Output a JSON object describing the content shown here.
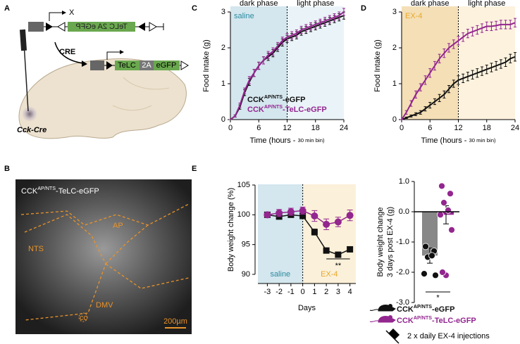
{
  "panels": [
    "A",
    "B",
    "C",
    "D",
    "E"
  ],
  "diagram": {
    "blocked_label": "X",
    "flipped_construct": "TeLC 2A eGFP",
    "recombinase": "CRE",
    "construct": [
      "TeLC",
      "2A",
      "eGFP"
    ],
    "mouse_line": "Cck-Cre"
  },
  "micrograph": {
    "title": [
      "CCK",
      "AP/NTS",
      "-TeLC-eGFP"
    ],
    "regions": [
      "AP",
      "NTS",
      "DMV",
      "cc"
    ],
    "scale_bar": "200µm"
  },
  "chart_data": [
    {
      "type": "line",
      "ylabel": "Food Intake (g)",
      "xlabel": [
        "Time (hours - ",
        "30 min bin)"
      ],
      "x": [
        0,
        1,
        2,
        3,
        4,
        5,
        6,
        7,
        8,
        9,
        10,
        11,
        12,
        13,
        14,
        15,
        16,
        17,
        18,
        19,
        20,
        21,
        22,
        23,
        24
      ],
      "xlim": [
        0,
        24
      ],
      "ylim": [
        0,
        3
      ],
      "xticks": [
        0,
        6,
        12,
        18,
        24
      ],
      "yticks": [
        0,
        1,
        2,
        3
      ],
      "regions": [
        {
          "label": "dark phase",
          "start": 0,
          "end": 12,
          "color": "#d4e6ee"
        },
        {
          "label": "light phase",
          "start": 12,
          "end": 24,
          "color": "#eaf3f8"
        }
      ],
      "divider": 12,
      "annotation": {
        "text": "saline",
        "color": "#2a8ca0"
      },
      "series": [
        {
          "name": [
            "CCK",
            "AP/NTS",
            "-eGFP"
          ],
          "color": "#111111",
          "values": [
            0,
            0.1,
            0.35,
            0.75,
            1.05,
            1.3,
            1.5,
            1.65,
            1.75,
            1.85,
            2.0,
            2.15,
            2.25,
            2.3,
            2.35,
            2.45,
            2.5,
            2.55,
            2.6,
            2.65,
            2.7,
            2.75,
            2.8,
            2.85,
            2.9
          ],
          "errors": [
            0,
            0.03,
            0.06,
            0.08,
            0.1,
            0.1,
            0.1,
            0.1,
            0.1,
            0.1,
            0.1,
            0.1,
            0.1,
            0.1,
            0.1,
            0.1,
            0.1,
            0.1,
            0.1,
            0.1,
            0.1,
            0.1,
            0.1,
            0.1,
            0.1
          ]
        },
        {
          "name": [
            "CCK",
            "AP/NTS",
            "-TeLC-eGFP"
          ],
          "color": "#93268f",
          "values": [
            0,
            0.1,
            0.4,
            0.8,
            1.1,
            1.3,
            1.5,
            1.65,
            1.8,
            1.9,
            2.05,
            2.2,
            2.3,
            2.35,
            2.4,
            2.5,
            2.55,
            2.6,
            2.65,
            2.7,
            2.75,
            2.8,
            2.85,
            2.9,
            3.0
          ],
          "errors": [
            0,
            0.03,
            0.06,
            0.08,
            0.1,
            0.1,
            0.1,
            0.1,
            0.1,
            0.1,
            0.1,
            0.1,
            0.1,
            0.1,
            0.1,
            0.1,
            0.1,
            0.1,
            0.1,
            0.1,
            0.1,
            0.1,
            0.1,
            0.1,
            0.1
          ]
        }
      ]
    },
    {
      "type": "line",
      "ylabel": "Food Intake (g)",
      "xlabel": [
        "Time (hours - ",
        "30 min bin)"
      ],
      "x": [
        0,
        1,
        2,
        3,
        4,
        5,
        6,
        7,
        8,
        9,
        10,
        11,
        12,
        13,
        14,
        15,
        16,
        17,
        18,
        19,
        20,
        21,
        22,
        23,
        24
      ],
      "xlim": [
        0,
        24
      ],
      "ylim": [
        0,
        3
      ],
      "xticks": [
        0,
        6,
        12,
        18,
        24
      ],
      "yticks": [
        0,
        1,
        2,
        3
      ],
      "regions": [
        {
          "label": "dark phase",
          "start": 0,
          "end": 12,
          "color": "#f4dfb6"
        },
        {
          "label": "light phase",
          "start": 12,
          "end": 24,
          "color": "#fcf2de"
        }
      ],
      "divider": 12,
      "annotation": {
        "text": "EX-4",
        "color": "#e8a82a"
      },
      "series": [
        {
          "color": "#111111",
          "values": [
            0,
            0.05,
            0.1,
            0.15,
            0.2,
            0.3,
            0.4,
            0.5,
            0.6,
            0.7,
            0.85,
            1.0,
            1.1,
            1.15,
            1.2,
            1.25,
            1.3,
            1.35,
            1.4,
            1.45,
            1.5,
            1.55,
            1.6,
            1.7,
            1.75
          ],
          "errors": [
            0,
            0.02,
            0.03,
            0.04,
            0.05,
            0.06,
            0.08,
            0.08,
            0.1,
            0.1,
            0.1,
            0.1,
            0.12,
            0.12,
            0.12,
            0.12,
            0.12,
            0.12,
            0.12,
            0.12,
            0.12,
            0.12,
            0.12,
            0.12,
            0.12
          ]
        },
        {
          "color": "#93268f",
          "values": [
            0,
            0.2,
            0.45,
            0.7,
            0.9,
            1.1,
            1.3,
            1.5,
            1.7,
            1.85,
            2.0,
            2.1,
            2.2,
            2.3,
            2.4,
            2.45,
            2.5,
            2.55,
            2.6,
            2.6,
            2.62,
            2.65,
            2.65,
            2.65,
            2.7
          ],
          "errors": [
            0,
            0.05,
            0.08,
            0.1,
            0.1,
            0.12,
            0.12,
            0.12,
            0.12,
            0.12,
            0.12,
            0.12,
            0.12,
            0.12,
            0.12,
            0.12,
            0.12,
            0.12,
            0.12,
            0.12,
            0.12,
            0.12,
            0.12,
            0.12,
            0.12
          ]
        }
      ]
    },
    {
      "type": "line",
      "ylabel": "Body weight change (%)",
      "xlabel": "Days",
      "x": [
        -3,
        -2,
        -1,
        0,
        1,
        2,
        3,
        4
      ],
      "xlim": [
        -3.8,
        4.5
      ],
      "ylim": [
        90,
        105
      ],
      "xticks": [
        -3,
        -2,
        -1,
        0,
        1,
        2,
        3,
        4
      ],
      "yticks": [
        90,
        95,
        100,
        105
      ],
      "regions": [
        {
          "label": "saline",
          "start": -3.8,
          "end": 0,
          "color": "#d4e6ee",
          "label_color": "#2a8ca0"
        },
        {
          "label": "EX-4",
          "start": 0,
          "end": 4.5,
          "color": "#fbf0d9",
          "label_color": "#e8a82a"
        }
      ],
      "divider": 0,
      "annotation": {
        "text": "**"
      },
      "series": [
        {
          "name": [
            "CCK",
            "AP/NTS",
            "-eGFP"
          ],
          "color": "#111111",
          "marker": "square",
          "values": [
            100,
            99.7,
            100,
            99.8,
            97.1,
            94,
            93.3,
            94.2
          ],
          "errors": [
            0.2,
            0.3,
            0.3,
            0.3,
            0.5,
            0.3,
            0.4,
            0.3
          ]
        },
        {
          "name": [
            "CCK",
            "AP/NTS",
            "-TeLC-eGFP"
          ],
          "color": "#93268f",
          "marker": "circle",
          "values": [
            100,
            100.3,
            100.5,
            100.7,
            99.8,
            98.4,
            98.8,
            99.9
          ],
          "errors": [
            0.3,
            0.6,
            0.6,
            0.6,
            0.9,
            0.9,
            0.8,
            0.9
          ]
        }
      ],
      "legend_note": "2 x daily EX-4 injections"
    },
    {
      "type": "bar",
      "ylabel": [
        "Body weight change",
        "3 days post EX-4 (g)"
      ],
      "categories": [
        null,
        null
      ],
      "values": [
        -1.45,
        -0.1
      ],
      "errors": [
        0.25,
        0.3
      ],
      "colors": [
        "#888888",
        "#93268f"
      ],
      "points": [
        [
          -1.15,
          -1.3,
          -1.5,
          -1.45,
          -2.05,
          -2.1
        ],
        [
          0.85,
          0.6,
          0.3,
          0.05,
          -0.1,
          -0.6,
          -2.1,
          -2.0
        ]
      ],
      "point_colors": [
        "#111111",
        "#93268f"
      ],
      "ylim": [
        -3,
        1
      ],
      "yticks": [
        {
          "value": 1,
          "label": "1.0"
        },
        {
          "value": 0,
          "label": "0.0"
        },
        {
          "value": -1,
          "label": "-1.0"
        },
        {
          "value": -2,
          "label": "-2.0"
        },
        {
          "value": -3,
          "label": "-3.0"
        }
      ],
      "annotation": {
        "text": "*"
      }
    }
  ]
}
